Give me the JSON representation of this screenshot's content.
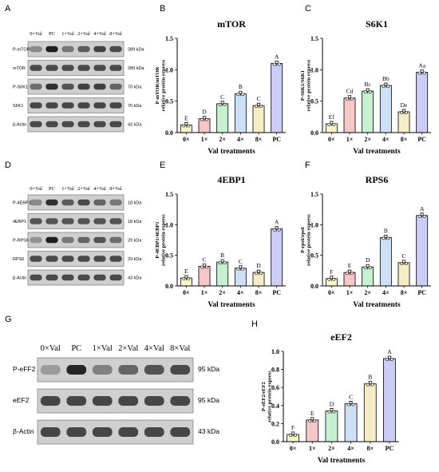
{
  "panels": {
    "A": "A",
    "B": "B",
    "C": "C",
    "D": "D",
    "E": "E",
    "F": "F",
    "G": "G",
    "H": "H"
  },
  "blots": [
    {
      "panel": "A",
      "lanes": [
        "0×Val",
        "PC",
        "1×Val",
        "2×Val",
        "4×Val",
        "8×Val"
      ],
      "rows": [
        {
          "label": "P-mTOR",
          "kda": "289 kDa",
          "intensity": [
            0.35,
            0.95,
            0.45,
            0.6,
            0.75,
            0.7
          ]
        },
        {
          "label": "mTOR",
          "kda": "289 kDa",
          "intensity": [
            0.7,
            0.7,
            0.7,
            0.7,
            0.7,
            0.7
          ]
        },
        {
          "label": "P-S6K1",
          "kda": "70 kDa",
          "intensity": [
            0.5,
            0.85,
            0.65,
            0.75,
            0.75,
            0.55
          ]
        },
        {
          "label": "S6K1",
          "kda": "70 kDa",
          "intensity": [
            0.72,
            0.72,
            0.72,
            0.72,
            0.72,
            0.72
          ]
        },
        {
          "label": "β-Actin",
          "kda": "43 kDa",
          "intensity": [
            0.7,
            0.7,
            0.7,
            0.7,
            0.7,
            0.7
          ]
        }
      ]
    },
    {
      "panel": "D",
      "lanes": [
        "0×Val",
        "PC",
        "1×Val",
        "2×Val",
        "4×Val",
        "8×Val"
      ],
      "rows": [
        {
          "label": "P-4EBP1",
          "kda": "18 kDa",
          "intensity": [
            0.35,
            0.85,
            0.6,
            0.7,
            0.55,
            0.45
          ]
        },
        {
          "label": "4EBP1",
          "kda": "18 kDa",
          "intensity": [
            0.65,
            0.65,
            0.65,
            0.65,
            0.65,
            0.65
          ]
        },
        {
          "label": "P-RPS6",
          "kda": "29 kDa",
          "intensity": [
            0.3,
            0.95,
            0.45,
            0.55,
            0.65,
            0.5
          ]
        },
        {
          "label": "RPS6",
          "kda": "29 kDa",
          "intensity": [
            0.7,
            0.7,
            0.7,
            0.7,
            0.7,
            0.7
          ]
        },
        {
          "label": "β-Actin",
          "kda": "43 kDa",
          "intensity": [
            0.7,
            0.7,
            0.7,
            0.7,
            0.7,
            0.7
          ]
        }
      ]
    },
    {
      "panel": "G",
      "lanes": [
        "0×Val",
        "PC",
        "1×Val",
        "2×Val",
        "4×Val",
        "8×Val"
      ],
      "rows": [
        {
          "label": "P-eFF2",
          "kda": "95 kDa",
          "intensity": [
            0.25,
            0.9,
            0.4,
            0.55,
            0.65,
            0.7
          ]
        },
        {
          "label": "eEF2",
          "kda": "95 kDa",
          "intensity": [
            0.72,
            0.72,
            0.72,
            0.72,
            0.72,
            0.72
          ]
        },
        {
          "label": "β-Actin",
          "kda": "43 kDa",
          "intensity": [
            0.72,
            0.72,
            0.72,
            0.72,
            0.72,
            0.72
          ]
        }
      ]
    }
  ],
  "chart_data": [
    {
      "panel": "B",
      "type": "bar",
      "title": "mTOR",
      "categories": [
        "0×",
        "1×",
        "2×",
        "4×",
        "8×",
        "PC"
      ],
      "values": [
        0.12,
        0.22,
        0.46,
        0.62,
        0.43,
        1.1
      ],
      "letters": [
        "E",
        "D",
        "C",
        "B",
        "C",
        "A"
      ],
      "ylabel": [
        "P-mTOR/mTOR",
        "relative protein express"
      ],
      "xlabel": "Val treatments",
      "ylim": [
        0,
        1.5
      ],
      "yticks": [
        "0.0",
        "0.5",
        "1.0",
        "1.5"
      ],
      "colors": [
        "#fdf6c8",
        "#f6c7c9",
        "#c6f0cf",
        "#cde0f5",
        "#f5edc6",
        "#cbcdf5"
      ]
    },
    {
      "panel": "C",
      "type": "bar",
      "title": "S6K1",
      "categories": [
        "0×",
        "1×",
        "2×",
        "4×",
        "8×",
        "PC"
      ],
      "values": [
        0.14,
        0.55,
        0.66,
        0.75,
        0.33,
        0.96
      ],
      "letters": [
        "Ef",
        "Cd",
        "Bc",
        "Bb",
        "De",
        "Aa"
      ],
      "ylabel": [
        "P-S6K1/S6K1",
        "relative protein express"
      ],
      "xlabel": "Val treatments",
      "ylim": [
        0,
        1.5
      ],
      "yticks": [
        "0.0",
        "0.5",
        "1.0",
        "1.5"
      ],
      "colors": [
        "#fdf6c8",
        "#f6c7c9",
        "#c6f0cf",
        "#cde0f5",
        "#f5edc6",
        "#cbcdf5"
      ]
    },
    {
      "panel": "E",
      "type": "bar",
      "title": "4EBP1",
      "categories": [
        "0×",
        "1×",
        "2×",
        "4×",
        "8×",
        "PC"
      ],
      "values": [
        0.13,
        0.32,
        0.39,
        0.29,
        0.22,
        0.93
      ],
      "letters": [
        "E",
        "C",
        "B",
        "C",
        "D",
        "A"
      ],
      "ylabel": [
        "P-4EBP1/4EBP1",
        "relative protein express"
      ],
      "xlabel": "Val treatments",
      "ylim": [
        0,
        1.5
      ],
      "yticks": [
        "0.0",
        "0.5",
        "1.0",
        "1.5"
      ],
      "colors": [
        "#fdf6c8",
        "#f6c7c9",
        "#c6f0cf",
        "#cde0f5",
        "#f5edc6",
        "#cbcdf5"
      ]
    },
    {
      "panel": "F",
      "type": "bar",
      "title": "RPS6",
      "categories": [
        "0×",
        "1×",
        "2×",
        "4×",
        "8×",
        "PC"
      ],
      "values": [
        0.12,
        0.22,
        0.31,
        0.79,
        0.38,
        1.15
      ],
      "letters": [
        "F",
        "E",
        "D",
        "B",
        "C",
        "A"
      ],
      "ylabel": [
        "P-rps6/rps6",
        "relative protein express"
      ],
      "xlabel": "Val treatments",
      "ylim": [
        0,
        1.5
      ],
      "yticks": [
        "0.0",
        "0.5",
        "1.0",
        "1.5"
      ],
      "colors": [
        "#fdf6c8",
        "#f6c7c9",
        "#c6f0cf",
        "#cde0f5",
        "#f5edc6",
        "#cbcdf5"
      ]
    },
    {
      "panel": "H",
      "type": "bar",
      "title": "eEF2",
      "categories": [
        "0×",
        "1×",
        "2×",
        "4×",
        "8×",
        "PC"
      ],
      "values": [
        0.08,
        0.24,
        0.34,
        0.42,
        0.64,
        0.92
      ],
      "letters": [
        "F",
        "E",
        "D",
        "C",
        "B",
        "A"
      ],
      "ylabel": [
        "P-eEF2/eEF2",
        "relative protein express"
      ],
      "xlabel": "Val treatments",
      "ylim": [
        0,
        1.0
      ],
      "yticks": [
        "0.0",
        "0.2",
        "0.4",
        "0.6",
        "0.8",
        "1.0"
      ],
      "colors": [
        "#fdf6c8",
        "#f6c7c9",
        "#c6f0cf",
        "#cde0f5",
        "#f5edc6",
        "#cbcdf5"
      ]
    }
  ]
}
